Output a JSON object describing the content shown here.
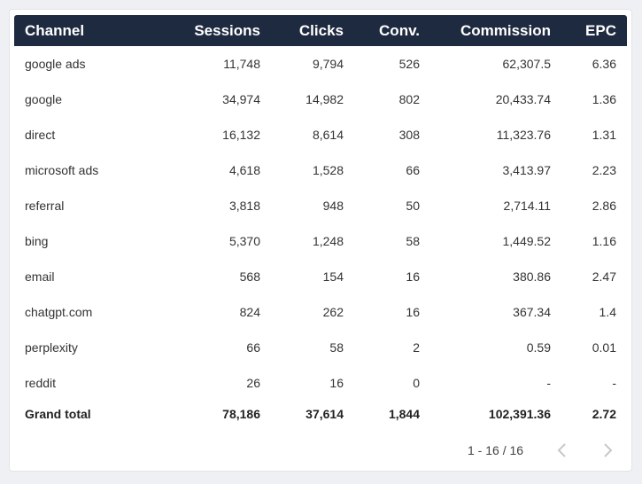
{
  "table": {
    "columns": [
      "Channel",
      "Sessions",
      "Clicks",
      "Conv.",
      "Commission",
      "EPC"
    ],
    "rows": [
      [
        "google ads",
        "11,748",
        "9,794",
        "526",
        "62,307.5",
        "6.36"
      ],
      [
        "google",
        "34,974",
        "14,982",
        "802",
        "20,433.74",
        "1.36"
      ],
      [
        "direct",
        "16,132",
        "8,614",
        "308",
        "11,323.76",
        "1.31"
      ],
      [
        "microsoft ads",
        "4,618",
        "1,528",
        "66",
        "3,413.97",
        "2.23"
      ],
      [
        "referral",
        "3,818",
        "948",
        "50",
        "2,714.11",
        "2.86"
      ],
      [
        "bing",
        "5,370",
        "1,248",
        "58",
        "1,449.52",
        "1.16"
      ],
      [
        "email",
        "568",
        "154",
        "16",
        "380.86",
        "2.47"
      ],
      [
        "chatgpt.com",
        "824",
        "262",
        "16",
        "367.34",
        "1.4"
      ],
      [
        "perplexity",
        "66",
        "58",
        "2",
        "0.59",
        "0.01"
      ],
      [
        "reddit",
        "26",
        "16",
        "0",
        "-",
        "-"
      ]
    ],
    "total": [
      "Grand total",
      "78,186",
      "37,614",
      "1,844",
      "102,391.36",
      "2.72"
    ]
  },
  "pagination": {
    "label": "1 - 16 / 16"
  }
}
